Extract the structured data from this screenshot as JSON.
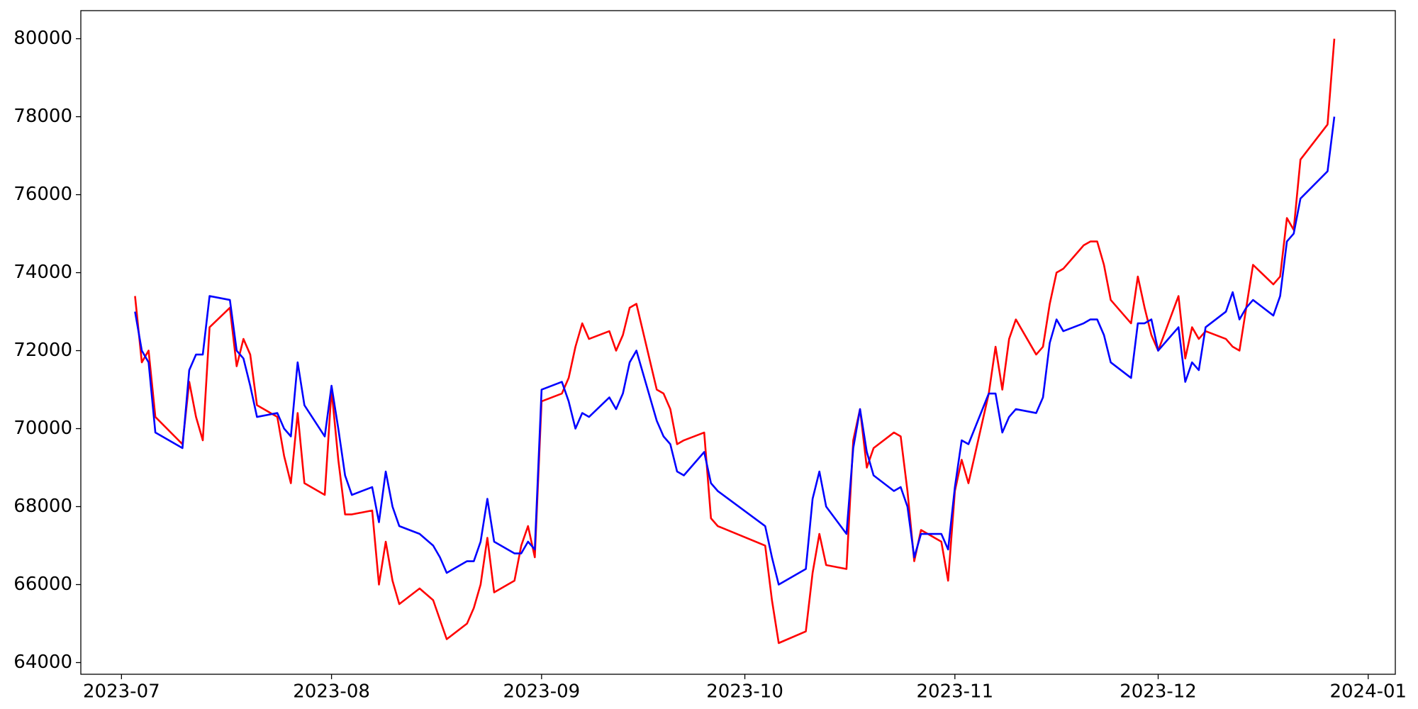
{
  "chart_data": {
    "type": "line",
    "x": [
      "2023-07-03",
      "2023-07-04",
      "2023-07-05",
      "2023-07-06",
      "2023-07-10",
      "2023-07-11",
      "2023-07-12",
      "2023-07-13",
      "2023-07-14",
      "2023-07-17",
      "2023-07-18",
      "2023-07-19",
      "2023-07-20",
      "2023-07-21",
      "2023-07-24",
      "2023-07-25",
      "2023-07-26",
      "2023-07-27",
      "2023-07-28",
      "2023-07-31",
      "2023-08-01",
      "2023-08-02",
      "2023-08-03",
      "2023-08-04",
      "2023-08-07",
      "2023-08-08",
      "2023-08-09",
      "2023-08-10",
      "2023-08-11",
      "2023-08-14",
      "2023-08-16",
      "2023-08-17",
      "2023-08-18",
      "2023-08-21",
      "2023-08-22",
      "2023-08-23",
      "2023-08-24",
      "2023-08-25",
      "2023-08-28",
      "2023-08-29",
      "2023-08-30",
      "2023-08-31",
      "2023-09-01",
      "2023-09-04",
      "2023-09-05",
      "2023-09-06",
      "2023-09-07",
      "2023-09-08",
      "2023-09-11",
      "2023-09-12",
      "2023-09-13",
      "2023-09-14",
      "2023-09-15",
      "2023-09-18",
      "2023-09-19",
      "2023-09-20",
      "2023-09-21",
      "2023-09-22",
      "2023-09-25",
      "2023-09-26",
      "2023-09-27",
      "2023-10-04",
      "2023-10-05",
      "2023-10-06",
      "2023-10-10",
      "2023-10-11",
      "2023-10-12",
      "2023-10-13",
      "2023-10-16",
      "2023-10-17",
      "2023-10-18",
      "2023-10-19",
      "2023-10-20",
      "2023-10-23",
      "2023-10-24",
      "2023-10-25",
      "2023-10-26",
      "2023-10-27",
      "2023-10-30",
      "2023-10-31",
      "2023-11-01",
      "2023-11-02",
      "2023-11-03",
      "2023-11-06",
      "2023-11-07",
      "2023-11-08",
      "2023-11-09",
      "2023-11-10",
      "2023-11-13",
      "2023-11-14",
      "2023-11-15",
      "2023-11-16",
      "2023-11-17",
      "2023-11-20",
      "2023-11-21",
      "2023-11-22",
      "2023-11-23",
      "2023-11-24",
      "2023-11-27",
      "2023-11-28",
      "2023-11-29",
      "2023-11-30",
      "2023-12-01",
      "2023-12-04",
      "2023-12-05",
      "2023-12-06",
      "2023-12-07",
      "2023-12-08",
      "2023-12-11",
      "2023-12-12",
      "2023-12-13",
      "2023-12-14",
      "2023-12-15",
      "2023-12-18",
      "2023-12-19",
      "2023-12-20",
      "2023-12-21",
      "2023-12-22",
      "2023-12-26",
      "2023-12-27"
    ],
    "series": [
      {
        "color": "red",
        "values": [
          73400,
          71700,
          72000,
          70300,
          69600,
          71200,
          70300,
          69700,
          72600,
          73100,
          71600,
          72300,
          71900,
          70600,
          70300,
          69300,
          68600,
          70400,
          68600,
          68300,
          71000,
          69200,
          67800,
          67800,
          67900,
          66000,
          67100,
          66100,
          65500,
          65900,
          65600,
          65100,
          64600,
          65000,
          65400,
          66000,
          67200,
          65800,
          66100,
          67000,
          67500,
          66700,
          70700,
          70900,
          71300,
          72100,
          72700,
          72300,
          72500,
          72000,
          72400,
          73100,
          73200,
          71000,
          70900,
          70500,
          69600,
          69700,
          69900,
          67700,
          67500,
          67000,
          65600,
          64500,
          64800,
          66300,
          67300,
          66500,
          66400,
          69700,
          70500,
          69000,
          69500,
          69900,
          69800,
          68400,
          66600,
          67400,
          67100,
          66100,
          68400,
          69200,
          68600,
          70900,
          72100,
          71000,
          72300,
          72800,
          71900,
          72100,
          73200,
          74000,
          74100,
          74700,
          74800,
          74800,
          74200,
          73300,
          72700,
          73900,
          73100,
          72400,
          72000,
          73400,
          71800,
          72600,
          72300,
          72500,
          72300,
          72100,
          72000,
          73100,
          74200,
          73700,
          73900,
          75400,
          75100,
          76900,
          77800,
          80000
        ]
      },
      {
        "color": "blue",
        "values": [
          73000,
          72000,
          71700,
          69900,
          69500,
          71500,
          71900,
          71900,
          73400,
          73300,
          72000,
          71800,
          71100,
          70300,
          70400,
          70000,
          69800,
          71700,
          70600,
          69800,
          71100,
          70000,
          68800,
          68300,
          68500,
          67600,
          68900,
          68000,
          67500,
          67300,
          67000,
          66700,
          66300,
          66600,
          66600,
          67100,
          68200,
          67100,
          66800,
          66800,
          67100,
          66900,
          71000,
          71200,
          70700,
          70000,
          70400,
          70300,
          70800,
          70500,
          70900,
          71700,
          72000,
          70200,
          69800,
          69600,
          68900,
          68800,
          69400,
          68600,
          68400,
          67500,
          66700,
          66000,
          66400,
          68200,
          68900,
          68000,
          67300,
          69500,
          70500,
          69400,
          68800,
          68400,
          68500,
          68000,
          66700,
          67300,
          67300,
          66900,
          68500,
          69700,
          69600,
          70900,
          70900,
          69900,
          70300,
          70500,
          70400,
          70800,
          72200,
          72800,
          72500,
          72700,
          72800,
          72800,
          72400,
          71700,
          71300,
          72700,
          72700,
          72800,
          72000,
          72600,
          71200,
          71700,
          71500,
          72600,
          73000,
          73500,
          72800,
          73100,
          73300,
          72900,
          73400,
          74800,
          75000,
          75900,
          76600,
          78000
        ]
      }
    ],
    "xlim": [
      "2023-06-25",
      "2024-01-05"
    ],
    "xticks": [
      {
        "value": "2023-07-01",
        "label": "2023-07"
      },
      {
        "value": "2023-08-01",
        "label": "2023-08"
      },
      {
        "value": "2023-09-01",
        "label": "2023-09"
      },
      {
        "value": "2023-10-01",
        "label": "2023-10"
      },
      {
        "value": "2023-11-01",
        "label": "2023-11"
      },
      {
        "value": "2023-12-01",
        "label": "2023-12"
      },
      {
        "value": "2024-01-01",
        "label": "2024-01"
      }
    ],
    "ylim": [
      63700,
      80720
    ],
    "yticks": [
      64000,
      66000,
      68000,
      70000,
      72000,
      74000,
      76000,
      78000,
      80000
    ],
    "grid": false
  }
}
